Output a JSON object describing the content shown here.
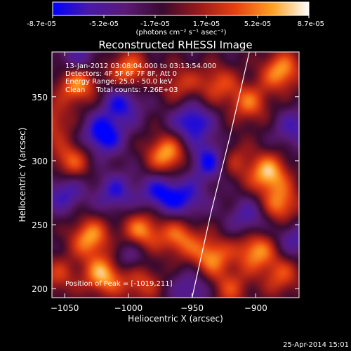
{
  "chart_data": {
    "type": "heatmap",
    "title": "Reconstructed RHESSI Image",
    "xlabel": "Heliocentric X (arcsec)",
    "ylabel": "Heliocentric Y (arcsec)",
    "xlim": [
      -1060,
      -866
    ],
    "ylim": [
      193,
      385
    ],
    "x_ticks": [
      -1050,
      -1000,
      -950,
      -900
    ],
    "y_ticks": [
      200,
      250,
      300,
      350
    ],
    "colorbar": {
      "ticks": [
        "-8.7e-05",
        "-5.2e-05",
        "-1.7e-05",
        "1.7e-05",
        "5.2e-05",
        "8.7e-05"
      ],
      "range": [
        -8.7e-05,
        8.7e-05
      ],
      "units": "(photons cm⁻² s⁻¹ asec⁻²)",
      "colormap": [
        "#0000ff",
        "#4a1aa8",
        "#5a1a74",
        "#3a0a30",
        "#9a1a1a",
        "#e84010",
        "#ffa020",
        "#ffffff"
      ]
    },
    "annotations": [
      "13-Jan-2012 03:08:04.000 to 03:13:54.000",
      "Detectors: 4F 5F 6F 7F 8F, Att 0",
      "Energy Range: 25.0 - 50.0 keV",
      "Clean     Total counts: 7.26E+03"
    ],
    "peak_label": "Position of Peak = [-1019,211]",
    "limb_curve": [
      [
        -950,
        193
      ],
      [
        -935,
        260
      ],
      [
        -920,
        320
      ],
      [
        -905,
        385
      ]
    ],
    "peaks": [
      {
        "x": -1040,
        "y": 360,
        "v": 0.9
      },
      {
        "x": -1000,
        "y": 370,
        "v": 0.8
      },
      {
        "x": -970,
        "y": 305,
        "v": 0.95
      },
      {
        "x": -1045,
        "y": 300,
        "v": 0.7
      },
      {
        "x": -1030,
        "y": 240,
        "v": 0.9
      },
      {
        "x": -1019,
        "y": 211,
        "v": 1.0
      },
      {
        "x": -990,
        "y": 245,
        "v": 0.85
      },
      {
        "x": -990,
        "y": 205,
        "v": 0.6
      },
      {
        "x": -960,
        "y": 240,
        "v": 0.75
      },
      {
        "x": -935,
        "y": 225,
        "v": 0.85
      },
      {
        "x": -900,
        "y": 230,
        "v": 0.9
      },
      {
        "x": -880,
        "y": 265,
        "v": 0.8
      },
      {
        "x": -890,
        "y": 290,
        "v": 1.0
      },
      {
        "x": -920,
        "y": 300,
        "v": 0.6
      },
      {
        "x": -905,
        "y": 345,
        "v": 0.7
      },
      {
        "x": -880,
        "y": 370,
        "v": 0.9
      },
      {
        "x": -930,
        "y": 360,
        "v": 0.6
      },
      {
        "x": -960,
        "y": 360,
        "v": 0.5
      },
      {
        "x": -880,
        "y": 210,
        "v": 0.6
      },
      {
        "x": -920,
        "y": 200,
        "v": 0.55
      },
      {
        "x": -1055,
        "y": 210,
        "v": 0.5
      },
      {
        "x": -1060,
        "y": 330,
        "v": 0.55
      }
    ],
    "troughs": [
      {
        "x": -1020,
        "y": 320,
        "v": -0.9
      },
      {
        "x": -1005,
        "y": 345,
        "v": -0.7
      },
      {
        "x": -950,
        "y": 330,
        "v": -0.8
      },
      {
        "x": -935,
        "y": 300,
        "v": -0.9
      },
      {
        "x": -975,
        "y": 275,
        "v": -0.7
      },
      {
        "x": -1050,
        "y": 275,
        "v": -0.6
      },
      {
        "x": -1010,
        "y": 275,
        "v": -0.6
      },
      {
        "x": -955,
        "y": 270,
        "v": -0.6
      },
      {
        "x": -1000,
        "y": 225,
        "v": -0.5
      },
      {
        "x": -905,
        "y": 255,
        "v": -0.55
      },
      {
        "x": -870,
        "y": 240,
        "v": -0.5
      },
      {
        "x": -1040,
        "y": 380,
        "v": -0.5
      },
      {
        "x": -870,
        "y": 325,
        "v": -0.5
      },
      {
        "x": -950,
        "y": 200,
        "v": -0.5
      }
    ]
  },
  "footer": {
    "timestamp": "25-Apr-2014 15:01"
  }
}
